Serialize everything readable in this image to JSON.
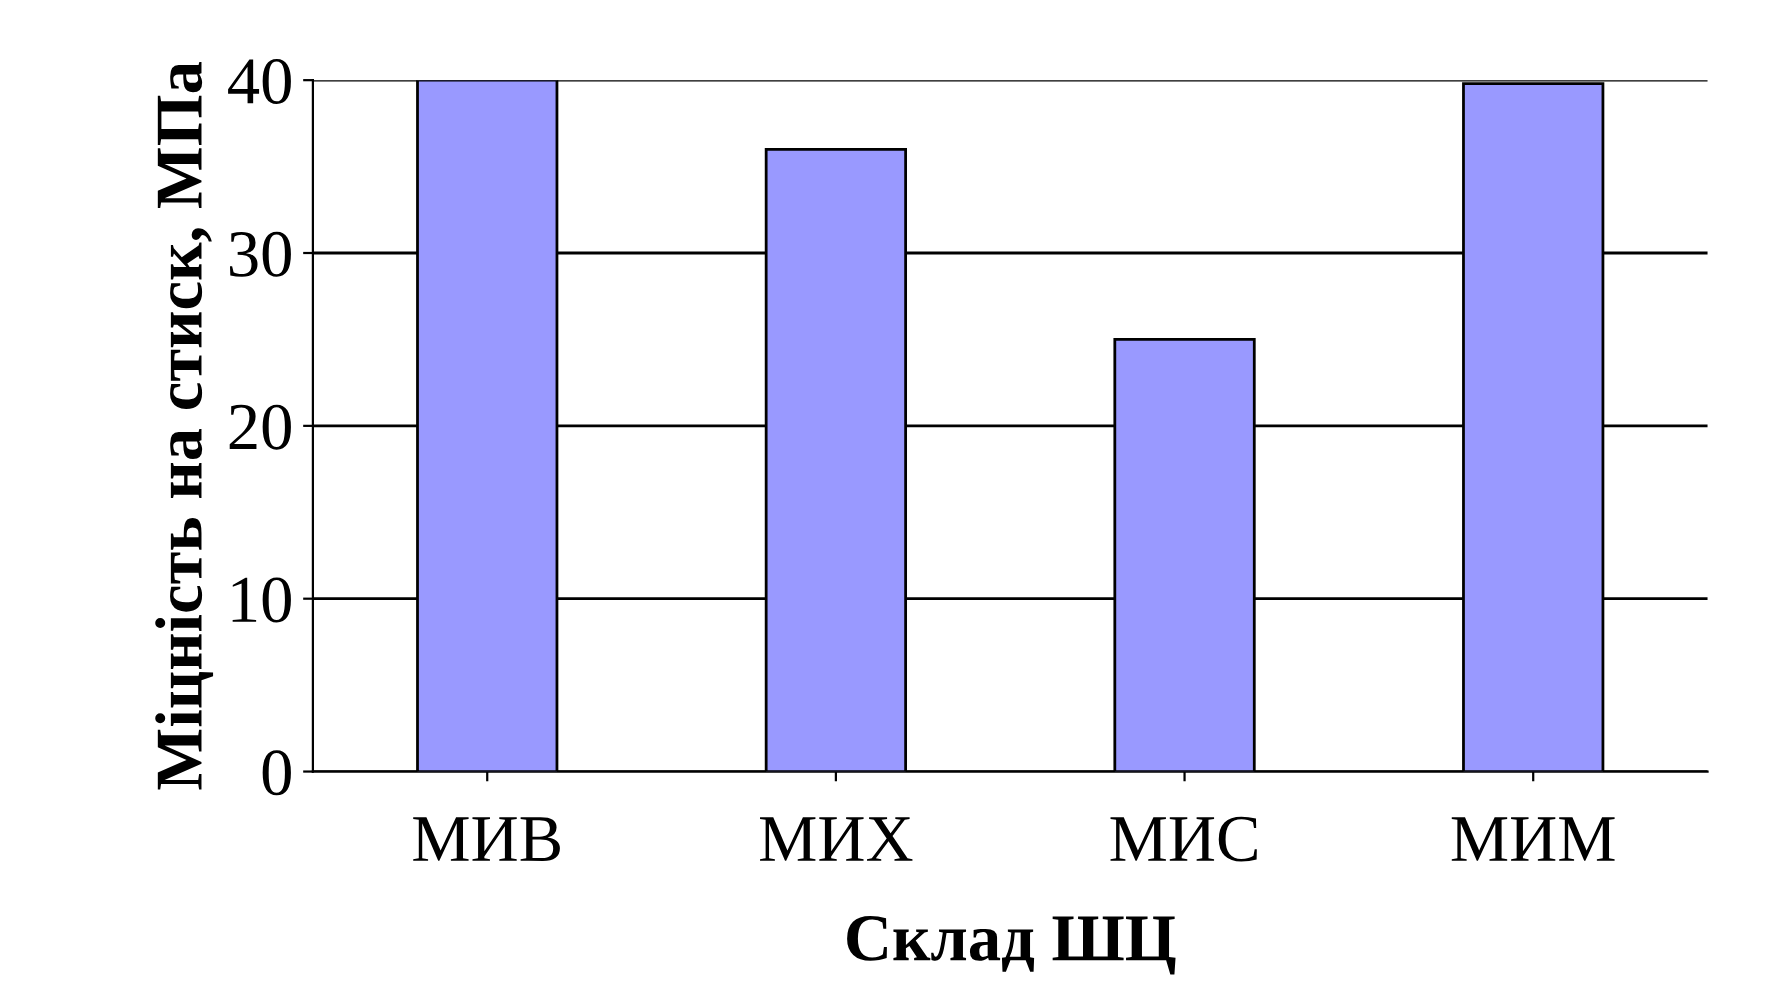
{
  "chart_data": {
    "type": "bar",
    "xlabel": "Склад ШЦ",
    "ylabel": "Міцність на стиск, МПа",
    "categories": [
      "МИВ",
      "МИХ",
      "МИС",
      "МИМ"
    ],
    "values": [
      40,
      36,
      25,
      39.8
    ],
    "color": "#9999ff",
    "ylim": [
      0,
      40
    ],
    "yticks": [
      0,
      10,
      20,
      30,
      40
    ],
    "grid": "y"
  }
}
